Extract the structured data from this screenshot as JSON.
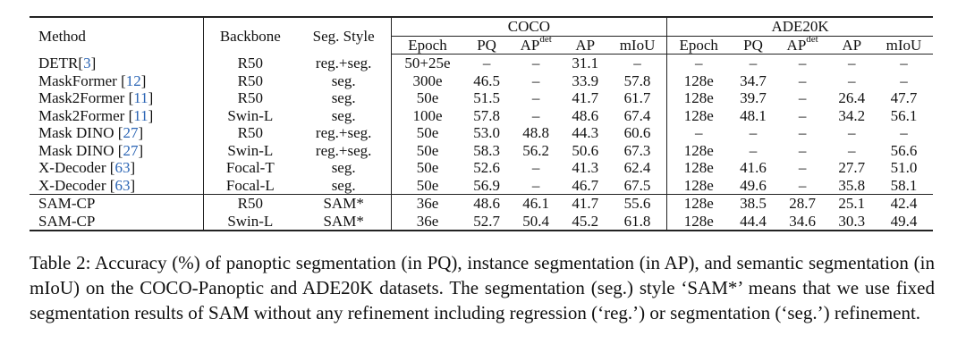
{
  "table": {
    "headers": {
      "method": "Method",
      "backbone": "Backbone",
      "seg_style": "Seg. Style",
      "coco_group": "COCO",
      "ade_group": "ADE20K",
      "epoch": "Epoch",
      "pq": "PQ",
      "ap_base": "AP",
      "ap_sup": "det",
      "ap": "AP",
      "miou": "mIoU"
    },
    "rows": [
      {
        "method": "DETR",
        "cite": "3",
        "backbone": "R50",
        "style": "reg.+seg.",
        "coco": [
          "50+25e",
          "–",
          "–",
          "31.1",
          "–"
        ],
        "ade": [
          "–",
          "–",
          "–",
          "–",
          "–"
        ]
      },
      {
        "method": "MaskFormer ",
        "cite": "12",
        "backbone": "R50",
        "style": "seg.",
        "coco": [
          "300e",
          "46.5",
          "–",
          "33.9",
          "57.8"
        ],
        "ade": [
          "128e",
          "34.7",
          "–",
          "–",
          "–"
        ]
      },
      {
        "method": "Mask2Former ",
        "cite": "11",
        "backbone": "R50",
        "style": "seg.",
        "coco": [
          "50e",
          "51.5",
          "–",
          "41.7",
          "61.7"
        ],
        "ade": [
          "128e",
          "39.7",
          "–",
          "26.4",
          "47.7"
        ]
      },
      {
        "method": "Mask2Former ",
        "cite": "11",
        "backbone": "Swin-L",
        "style": "seg.",
        "coco": [
          "100e",
          "57.8",
          "–",
          "48.6",
          "67.4"
        ],
        "ade": [
          "128e",
          "48.1",
          "–",
          "34.2",
          "56.1"
        ]
      },
      {
        "method": "Mask DINO ",
        "cite": "27",
        "backbone": "R50",
        "style": "reg.+seg.",
        "coco": [
          "50e",
          "53.0",
          "48.8",
          "44.3",
          "60.6"
        ],
        "ade": [
          "–",
          "–",
          "–",
          "–",
          "–"
        ]
      },
      {
        "method": "Mask DINO ",
        "cite": "27",
        "backbone": "Swin-L",
        "style": "reg.+seg.",
        "coco": [
          "50e",
          "58.3",
          "56.2",
          "50.6",
          "67.3"
        ],
        "ade": [
          "128e",
          "–",
          "–",
          "–",
          "56.6"
        ]
      },
      {
        "method": "X-Decoder ",
        "cite": "63",
        "backbone": "Focal-T",
        "style": "seg.",
        "coco": [
          "50e",
          "52.6",
          "–",
          "41.3",
          "62.4"
        ],
        "ade": [
          "128e",
          "41.6",
          "–",
          "27.7",
          "51.0"
        ]
      },
      {
        "method": "X-Decoder ",
        "cite": "63",
        "backbone": "Focal-L",
        "style": "seg.",
        "coco": [
          "50e",
          "56.9",
          "–",
          "46.7",
          "67.5"
        ],
        "ade": [
          "128e",
          "49.6",
          "–",
          "35.8",
          "58.1"
        ]
      }
    ],
    "ours": [
      {
        "method": "SAM-CP",
        "backbone": "R50",
        "style": "SAM*",
        "coco": [
          "36e",
          "48.6",
          "46.1",
          "41.7",
          "55.6"
        ],
        "ade": [
          "128e",
          "38.5",
          "28.7",
          "25.1",
          "42.4"
        ]
      },
      {
        "method": "SAM-CP",
        "backbone": "Swin-L",
        "style": "SAM*",
        "coco": [
          "36e",
          "52.7",
          "50.4",
          "45.2",
          "61.8"
        ],
        "ade": [
          "128e",
          "44.4",
          "34.6",
          "30.3",
          "49.4"
        ]
      }
    ]
  },
  "caption": "Table 2: Accuracy (%) of panoptic segmentation (in PQ), instance segmentation (in AP), and semantic segmentation (in mIoU) on the COCO-Panoptic and ADE20K datasets. The segmentation (seg.) style ‘SAM*’ means that we use fixed segmentation results of SAM without any refinement including regression (‘reg.’) or segmentation (‘seg.’) refinement."
}
